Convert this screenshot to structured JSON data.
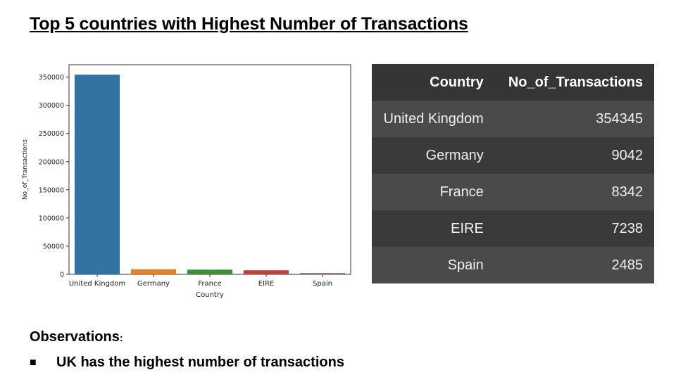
{
  "slide": {
    "title": "Top 5 countries with Highest Number of Transactions"
  },
  "chart_data": {
    "type": "bar",
    "categories": [
      "United Kingdom",
      "Germany",
      "France",
      "EIRE",
      "Spain"
    ],
    "values": [
      354345,
      9042,
      8342,
      7238,
      2485
    ],
    "colors": [
      "#3274a1",
      "#e1812c",
      "#3a923a",
      "#c03d3e",
      "#9372b2"
    ],
    "xlabel": "Country",
    "ylabel": "No_of_Transactions",
    "ylim": [
      0,
      372000
    ],
    "yticks": [
      0,
      50000,
      100000,
      150000,
      200000,
      250000,
      300000,
      350000
    ],
    "grid": false
  },
  "table": {
    "headers": [
      "Country",
      "No_of_Transactions"
    ],
    "rows": [
      [
        "United Kingdom",
        "354345"
      ],
      [
        "Germany",
        "9042"
      ],
      [
        "France",
        "8342"
      ],
      [
        "EIRE",
        "7238"
      ],
      [
        "Spain",
        "2485"
      ]
    ]
  },
  "observations": {
    "heading": "Observations",
    "heading_suffix": ":",
    "items": [
      "UK has the highest number of transactions"
    ]
  }
}
